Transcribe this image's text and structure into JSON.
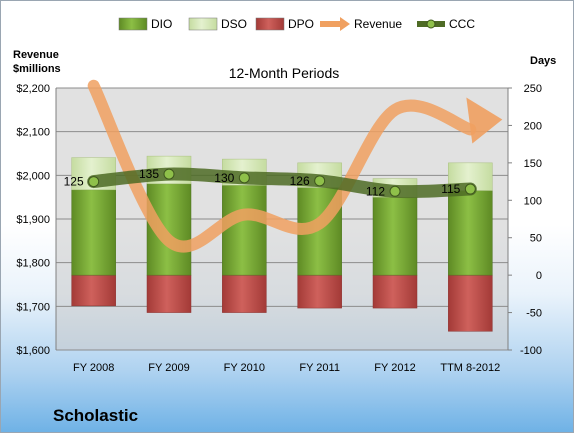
{
  "chart_data": {
    "type": "bar",
    "title": "12-Month Periods",
    "company": "Scholastic",
    "categories": [
      "FY 2008",
      "FY 2009",
      "FY 2010",
      "FY 2011",
      "FY 2012",
      "TTM 8-2012"
    ],
    "left_axis": {
      "label_line1": "Revenue",
      "label_line2": "$millions",
      "ticks": [
        "$1,600",
        "$1,700",
        "$1,800",
        "$1,900",
        "$2,000",
        "$2,100",
        "$2,200"
      ],
      "min": 1600,
      "max": 2200
    },
    "right_axis": {
      "label": "Days",
      "ticks": [
        "-100",
        "-50",
        "0",
        "50",
        "100",
        "150",
        "200",
        "250"
      ],
      "min": -100,
      "max": 250
    },
    "legend": [
      {
        "name": "DIO",
        "kind": "bar",
        "color": "#77a632"
      },
      {
        "name": "DSO",
        "kind": "bar",
        "color": "#d4e8b0"
      },
      {
        "name": "DPO",
        "kind": "bar",
        "color": "#c0504d"
      },
      {
        "name": "Revenue",
        "kind": "line",
        "color": "#f0a060"
      },
      {
        "name": "CCC",
        "kind": "line-marker",
        "color": "#4e6b25"
      }
    ],
    "series": [
      {
        "name": "DIO",
        "axis": "right",
        "values": [
          114,
          122,
          120,
          117,
          104,
          113
        ]
      },
      {
        "name": "DSO",
        "axis": "right",
        "values": [
          43,
          37,
          35,
          33,
          25,
          37
        ]
      },
      {
        "name": "DPO",
        "axis": "right",
        "values": [
          -41,
          -50,
          -50,
          -44,
          -44,
          -75
        ]
      },
      {
        "name": "Revenue",
        "axis": "left",
        "values": [
          2205,
          1850,
          1910,
          1890,
          2150,
          2105
        ]
      },
      {
        "name": "CCC",
        "axis": "right",
        "values": [
          125,
          135,
          130,
          126,
          112,
          115
        ],
        "labels": [
          "125",
          "135",
          "130",
          "126",
          "112",
          "115"
        ]
      }
    ],
    "grid": true,
    "legend_position": "top"
  }
}
